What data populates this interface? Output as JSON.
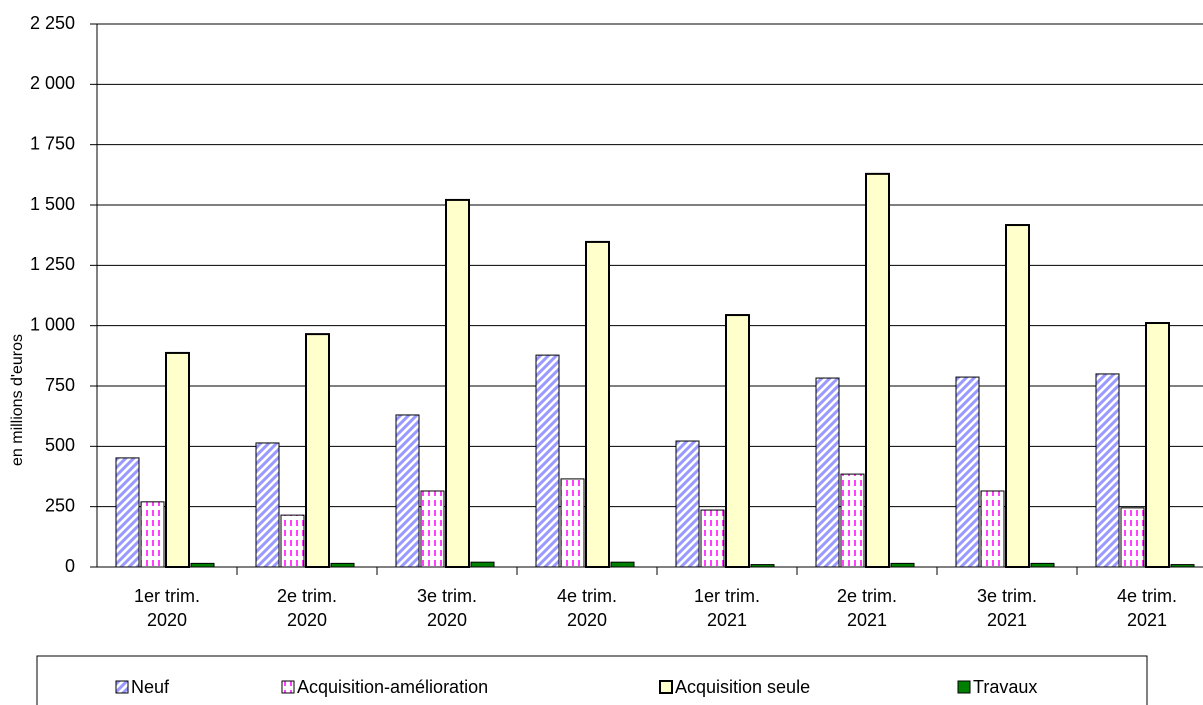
{
  "chart_data": {
    "type": "bar",
    "y_label": "en millions d'euros",
    "categories": [
      "1er trim.\n2020",
      "2e trim.\n2020",
      "3e trim.\n2020",
      "4e trim.\n2020",
      "1er trim.\n2021",
      "2e trim.\n2021",
      "3e trim.\n2021",
      "4e trim.\n2021"
    ],
    "series": [
      {
        "name": "Neuf",
        "color": "#9999ff",
        "pattern": "hatch",
        "values": [
          452,
          514,
          630,
          878,
          522,
          783,
          787,
          800
        ]
      },
      {
        "name": "Acquisition-amélioration",
        "color": "#ff00ff",
        "pattern": "dash",
        "values": [
          270,
          215,
          315,
          365,
          236,
          385,
          315,
          245
        ]
      },
      {
        "name": "Acquisition seule",
        "color": "#ffffcc",
        "values": [
          887,
          965,
          1521,
          1347,
          1044,
          1629,
          1417,
          1011
        ]
      },
      {
        "name": "Travaux",
        "color": "#008000",
        "values": [
          15,
          15,
          20,
          20,
          10,
          15,
          15,
          10
        ]
      }
    ],
    "ylim": [
      0,
      2250
    ],
    "yticks": [
      0,
      250,
      500,
      750,
      {
        "value": 1000,
        "label": "1 000"
      },
      {
        "value": 1250,
        "label": "1 250"
      },
      {
        "value": 1500,
        "label": "1 500"
      },
      {
        "value": 1750,
        "label": "1 750"
      },
      {
        "value": 2000,
        "label": "2 000"
      },
      {
        "value": 2250,
        "label": "2 250"
      }
    ],
    "grid": true,
    "legend": "bottom"
  }
}
